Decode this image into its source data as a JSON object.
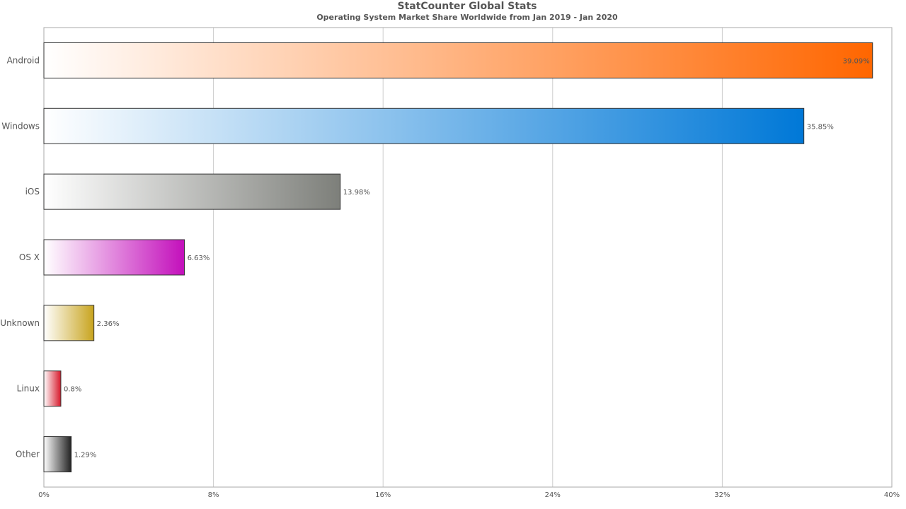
{
  "header": {
    "title": "StatCounter Global Stats",
    "subtitle": "Operating System Market Share Worldwide from Jan 2019 - Jan 2020"
  },
  "chart_data": {
    "type": "bar",
    "orientation": "horizontal",
    "title": "StatCounter Global Stats",
    "subtitle": "Operating System Market Share Worldwide from Jan 2019 - Jan 2020",
    "xlabel": "",
    "ylabel": "",
    "xlim": [
      0,
      40
    ],
    "x_ticks": [
      "0%",
      "8%",
      "16%",
      "24%",
      "32%",
      "40%"
    ],
    "x_tick_values": [
      0,
      8,
      16,
      24,
      32,
      40
    ],
    "grid": true,
    "legend": "none",
    "categories": [
      "Android",
      "Windows",
      "iOS",
      "OS X",
      "Unknown",
      "Linux",
      "Other"
    ],
    "values": [
      39.09,
      35.85,
      13.98,
      6.63,
      2.36,
      0.8,
      1.29
    ],
    "data_labels": [
      "39.09%",
      "35.85%",
      "13.98%",
      "6.63%",
      "2.36%",
      "0.8%",
      "1.29%"
    ],
    "colors": [
      "#ff6600",
      "#0078d7",
      "#7d7f7a",
      "#c30fbb",
      "#c8a41e",
      "#d6182a",
      "#222222"
    ]
  }
}
